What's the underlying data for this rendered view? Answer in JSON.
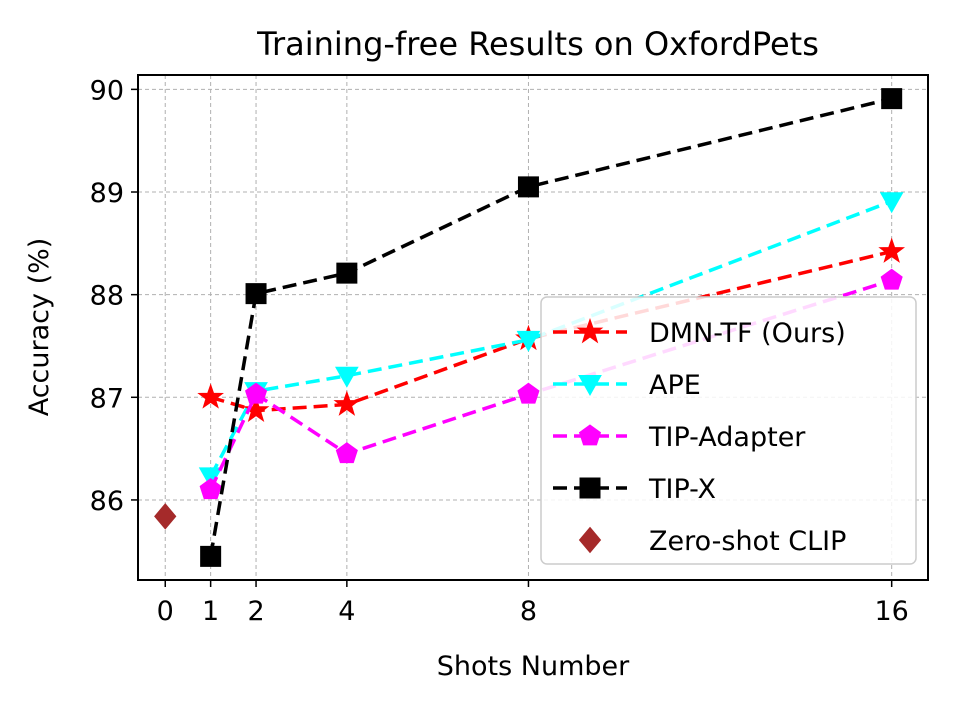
{
  "chart_data": {
    "type": "line",
    "title": "Training-free Results on OxfordPets",
    "xlabel": "Shots Number",
    "ylabel": "Accuracy (%)",
    "x_ticks": [
      0,
      1,
      2,
      4,
      8,
      16
    ],
    "y_ticks": [
      86,
      87,
      88,
      89,
      90
    ],
    "xlim": [
      -0.6,
      16.8
    ],
    "ylim": [
      85.22,
      90.14
    ],
    "grid": true,
    "legend_position": "lower-right",
    "series": [
      {
        "name": "DMN-TF (Ours)",
        "color": "#ff0000",
        "marker": "star",
        "line": "dashed",
        "x": [
          1,
          2,
          4,
          8,
          16
        ],
        "y": [
          87.0,
          86.87,
          86.93,
          87.57,
          88.42
        ]
      },
      {
        "name": "APE",
        "color": "#00ffff",
        "marker": "triangle-down",
        "line": "dashed",
        "x": [
          1,
          2,
          4,
          8,
          16
        ],
        "y": [
          86.23,
          87.06,
          87.21,
          87.56,
          88.91
        ]
      },
      {
        "name": "TIP-Adapter",
        "color": "#ff00ff",
        "marker": "pentagon",
        "line": "dashed",
        "x": [
          1,
          2,
          4,
          8,
          16
        ],
        "y": [
          86.1,
          87.03,
          86.45,
          87.03,
          88.14
        ]
      },
      {
        "name": "TIP-X",
        "color": "#000000",
        "marker": "square",
        "line": "dashed",
        "x": [
          1,
          2,
          4,
          8,
          16
        ],
        "y": [
          85.45,
          88.01,
          88.21,
          89.05,
          89.91
        ]
      },
      {
        "name": "Zero-shot CLIP",
        "color": "#a52a2a",
        "marker": "diamond",
        "line": "none",
        "x": [
          0
        ],
        "y": [
          85.84
        ]
      }
    ]
  }
}
